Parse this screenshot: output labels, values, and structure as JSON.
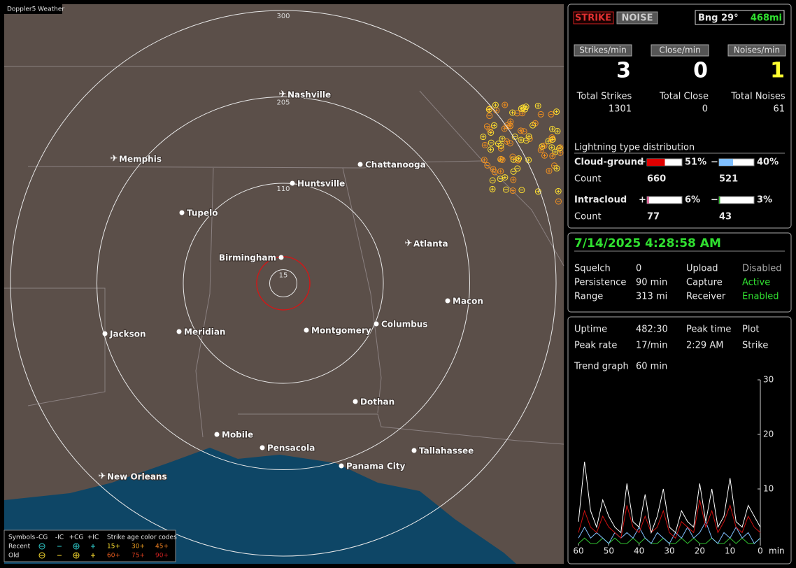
{
  "window_title": "Doppler5 Weather",
  "map": {
    "range_rings": [
      300,
      205,
      110,
      15
    ],
    "cities": [
      "Nashville",
      "Memphis",
      "Chattanooga",
      "Huntsville",
      "Tupelo",
      "Atlanta",
      "Birmingham",
      "Macon",
      "Montgomery",
      "Columbus",
      "Jackson",
      "Meridian",
      "Dothan",
      "Mobile",
      "Pensacola",
      "Tallahassee",
      "Panama City",
      "New Orleans"
    ],
    "legend": {
      "symbols_label": "Symbols",
      "symbol_headers": [
        "-CG",
        "-IC",
        "+CG",
        "+IC"
      ],
      "age_header": "Strike age color codes",
      "rows": [
        {
          "label": "Recent",
          "ages": [
            "15+",
            "30+",
            "45+"
          ]
        },
        {
          "label": "Old",
          "ages": [
            "60+",
            "75+",
            "90+"
          ]
        }
      ]
    }
  },
  "strike_panel": {
    "mode_buttons": [
      "STRIKE",
      "NOISE"
    ],
    "bearing": "Bng 29°",
    "distance": "468mi",
    "rates": [
      {
        "label": "Strikes/min",
        "value": 3
      },
      {
        "label": "Close/min",
        "value": 0
      },
      {
        "label": "Noises/min",
        "value": 1
      }
    ],
    "totals": [
      {
        "label": "Total Strikes",
        "value": 1301
      },
      {
        "label": "Total Close",
        "value": 0
      },
      {
        "label": "Total Noises",
        "value": 61
      }
    ],
    "distribution": {
      "title": "Lightning type distribution",
      "count_label": "Count",
      "types": [
        {
          "name": "Cloud-ground",
          "positive": {
            "sign": "+",
            "percent": 51,
            "percent_label": "51%",
            "count": 660
          },
          "negative": {
            "sign": "−",
            "percent": 40,
            "percent_label": "40%",
            "count": 521
          }
        },
        {
          "name": "Intracloud",
          "positive": {
            "sign": "+",
            "percent": 6,
            "percent_label": "6%",
            "count": 77
          },
          "negative": {
            "sign": "−",
            "percent": 3,
            "percent_label": "3%",
            "count": 43
          }
        }
      ]
    }
  },
  "status_panel": {
    "timestamp": "7/14/2025 4:28:58 AM",
    "rows": [
      [
        "Squelch",
        "0",
        "Upload",
        "Disabled"
      ],
      [
        "Persistence",
        "90 min",
        "Capture",
        "Active"
      ],
      [
        "Range",
        "313 mi",
        "Receiver",
        "Enabled"
      ]
    ]
  },
  "stats_panel": {
    "rows": [
      [
        "Uptime",
        "482:30",
        "Peak time",
        "Plot"
      ],
      [
        "Peak rate",
        "17/min",
        "2:29 AM",
        "Strike"
      ]
    ],
    "trend_label": "Trend graph",
    "trend_window": "60 min"
  },
  "chart_data": {
    "type": "line",
    "x": [
      60,
      58,
      56,
      54,
      52,
      50,
      48,
      46,
      44,
      42,
      40,
      38,
      36,
      34,
      32,
      30,
      28,
      26,
      24,
      22,
      20,
      18,
      16,
      14,
      12,
      10,
      8,
      6,
      4,
      2,
      0
    ],
    "xlim": [
      60,
      0
    ],
    "xticks": [
      60,
      50,
      40,
      30,
      20,
      10,
      0
    ],
    "xlabel": "min",
    "ylim": [
      0,
      30
    ],
    "yticks": [
      10,
      20,
      30
    ],
    "series": [
      {
        "color": "#ffffff",
        "values": [
          4,
          15,
          6,
          3,
          8,
          5,
          3,
          2,
          11,
          4,
          3,
          9,
          2,
          5,
          10,
          3,
          2,
          6,
          4,
          3,
          11,
          4,
          10,
          3,
          5,
          12,
          4,
          3,
          7,
          5,
          3
        ]
      },
      {
        "color": "#d01010",
        "values": [
          2,
          6,
          3,
          2,
          5,
          3,
          2,
          1,
          7,
          3,
          2,
          5,
          2,
          3,
          6,
          2,
          1,
          4,
          3,
          2,
          8,
          3,
          6,
          2,
          4,
          7,
          3,
          2,
          5,
          3,
          2
        ]
      },
      {
        "color": "#80c0ff",
        "values": [
          1,
          3,
          1,
          2,
          1,
          0,
          2,
          1,
          2,
          1,
          3,
          1,
          0,
          2,
          1,
          0,
          2,
          1,
          3,
          1,
          2,
          4,
          1,
          0,
          2,
          1,
          3,
          1,
          2,
          0,
          1
        ]
      },
      {
        "color": "#30c030",
        "values": [
          0,
          1,
          0,
          0,
          1,
          0,
          1,
          0,
          0,
          1,
          0,
          1,
          0,
          0,
          1,
          0,
          0,
          1,
          0,
          1,
          0,
          0,
          1,
          0,
          0,
          1,
          0,
          1,
          0,
          0,
          1
        ]
      }
    ]
  }
}
